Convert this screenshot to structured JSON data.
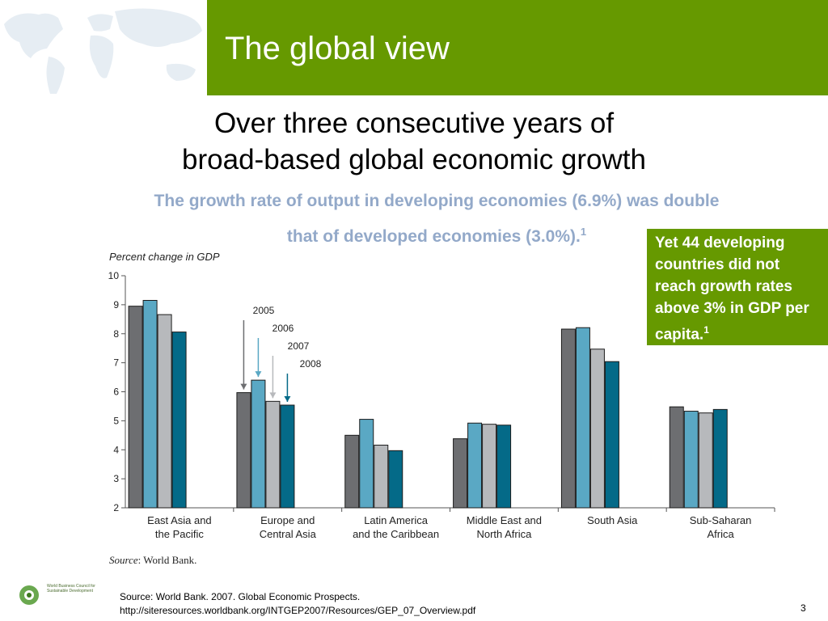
{
  "slide": {
    "title": "The global view",
    "headline_line1": "Over three consecutive years of",
    "headline_line2": "broad-based global economic growth",
    "subhead_line1": "The growth rate of output in developing economies (6.9%) was double",
    "subhead_line2": "that of developed economies (3.0%).",
    "subhead_footnote": "1",
    "callout_text": "Yet 44 developing countries did not reach growth rates above 3% in GDP per capita.",
    "callout_footnote": "1",
    "footer_source_line1": "Source: World Bank. 2007. Global Economic Prospects.",
    "footer_source_line2": "http://siteresources.worldbank.org/INTGEP2007/Resources/GEP_07_Overview.pdf",
    "page_number": "3",
    "logo_text": "World Business Council for Sustainable Development"
  },
  "colors": {
    "title_bar": "#669900",
    "subhead": "#93a9c9",
    "bar_2005": "#6d6e71",
    "bar_2006": "#5aa8c4",
    "bar_2007": "#b7b9bc",
    "bar_2008": "#046a88"
  },
  "chart_data": {
    "type": "bar",
    "ylabel": "Percent change in GDP",
    "source_label": "Source",
    "source_value": ": World Bank.",
    "ylim": [
      2,
      10
    ],
    "yticks": [
      "10",
      "9",
      "8",
      "7",
      "6",
      "5",
      "4",
      "3",
      "2"
    ],
    "categories": [
      [
        "East Asia and",
        "the Pacific"
      ],
      [
        "Europe and",
        "Central Asia"
      ],
      [
        "Latin America",
        "and the Caribbean"
      ],
      [
        "Middle East and",
        "North Africa"
      ],
      [
        "South Asia",
        ""
      ],
      [
        "Sub-Saharan",
        "Africa"
      ]
    ],
    "series": [
      {
        "name": "2005",
        "values": [
          8.95,
          5.97,
          4.5,
          4.38,
          8.16,
          5.48
        ]
      },
      {
        "name": "2006",
        "values": [
          9.15,
          6.4,
          5.05,
          4.92,
          8.21,
          5.33
        ]
      },
      {
        "name": "2007",
        "values": [
          8.66,
          5.67,
          4.16,
          4.88,
          7.47,
          5.27
        ]
      },
      {
        "name": "2008",
        "values": [
          8.06,
          5.54,
          3.97,
          4.85,
          7.04,
          5.39
        ]
      }
    ],
    "legend_placement": "callout arrows over Europe and Central Asia",
    "grid": false
  }
}
